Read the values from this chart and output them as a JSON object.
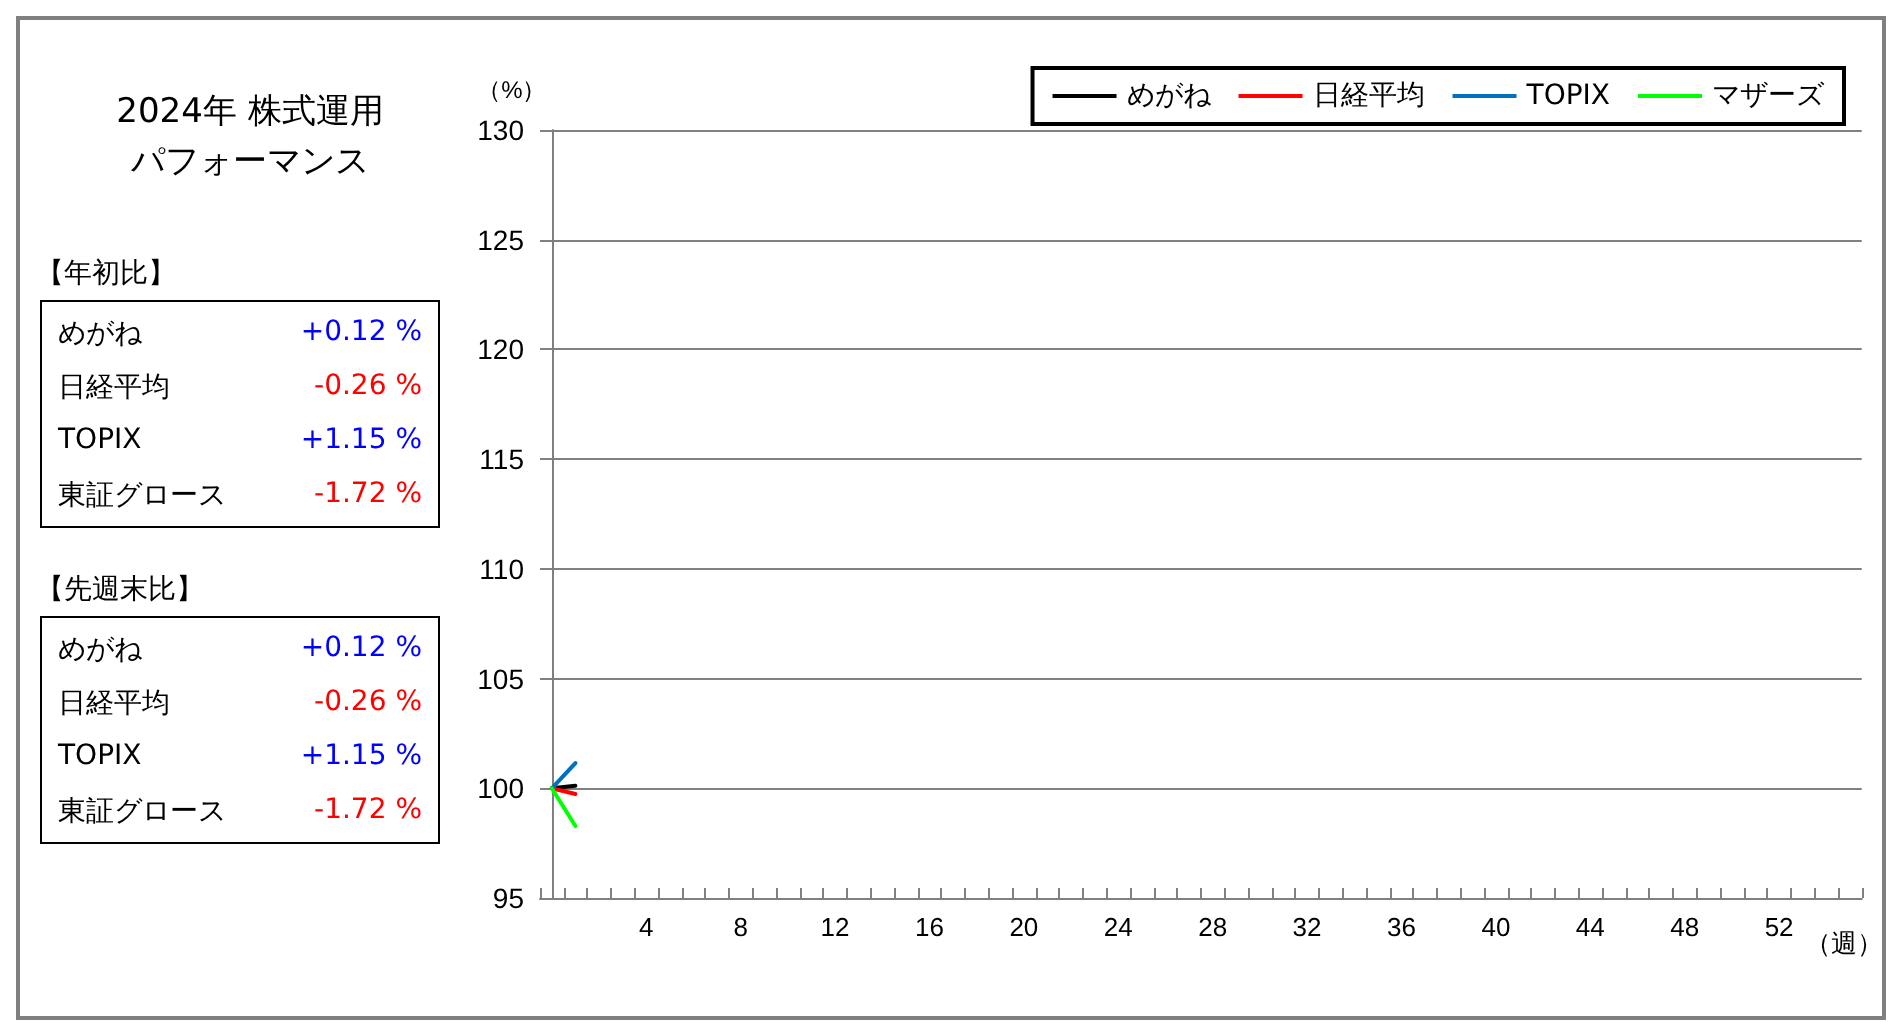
{
  "chart_data": {
    "type": "line",
    "title": "2024年  株式運用",
    "subtitle": "パフォーマンス",
    "xlabel": "（週）",
    "ylabel": "（%）",
    "x": [
      0,
      1
    ],
    "xlim": [
      -0.5,
      55.5
    ],
    "xticks": [
      {
        "value": -0.5,
        "label": null
      },
      {
        "value": 0.5,
        "label": null
      },
      {
        "value": 1.5,
        "label": null
      },
      {
        "value": 2.5,
        "label": null
      },
      {
        "value": 3.5,
        "label": null
      },
      {
        "value": 4.5,
        "label": null
      },
      {
        "value": 5.5,
        "label": null
      },
      {
        "value": 6.5,
        "label": null
      },
      {
        "value": 7.5,
        "label": null
      },
      {
        "value": 8.5,
        "label": null
      },
      {
        "value": 9.5,
        "label": null
      },
      {
        "value": 10.5,
        "label": null
      },
      {
        "value": 11.5,
        "label": null
      },
      {
        "value": 12.5,
        "label": null
      },
      {
        "value": 13.5,
        "label": null
      },
      {
        "value": 14.5,
        "label": null
      },
      {
        "value": 15.5,
        "label": null
      },
      {
        "value": 16.5,
        "label": null
      },
      {
        "value": 17.5,
        "label": null
      },
      {
        "value": 18.5,
        "label": null
      },
      {
        "value": 19.5,
        "label": null
      },
      {
        "value": 20.5,
        "label": null
      },
      {
        "value": 21.5,
        "label": null
      },
      {
        "value": 22.5,
        "label": null
      },
      {
        "value": 23.5,
        "label": null
      },
      {
        "value": 24.5,
        "label": null
      },
      {
        "value": 25.5,
        "label": null
      },
      {
        "value": 26.5,
        "label": null
      },
      {
        "value": 27.5,
        "label": null
      },
      {
        "value": 28.5,
        "label": null
      },
      {
        "value": 29.5,
        "label": null
      },
      {
        "value": 30.5,
        "label": null
      },
      {
        "value": 31.5,
        "label": null
      },
      {
        "value": 32.5,
        "label": null
      },
      {
        "value": 33.5,
        "label": null
      },
      {
        "value": 34.5,
        "label": null
      },
      {
        "value": 35.5,
        "label": null
      },
      {
        "value": 36.5,
        "label": null
      },
      {
        "value": 37.5,
        "label": null
      },
      {
        "value": 38.5,
        "label": null
      },
      {
        "value": 39.5,
        "label": null
      },
      {
        "value": 40.5,
        "label": null
      },
      {
        "value": 41.5,
        "label": null
      },
      {
        "value": 42.5,
        "label": null
      },
      {
        "value": 43.5,
        "label": null
      },
      {
        "value": 44.5,
        "label": null
      },
      {
        "value": 45.5,
        "label": null
      },
      {
        "value": 46.5,
        "label": null
      },
      {
        "value": 47.5,
        "label": null
      },
      {
        "value": 48.5,
        "label": null
      },
      {
        "value": 49.5,
        "label": null
      },
      {
        "value": 50.5,
        "label": null
      },
      {
        "value": 51.5,
        "label": null
      },
      {
        "value": 52.5,
        "label": null
      },
      {
        "value": 53.5,
        "label": null
      },
      {
        "value": 54.5,
        "label": null
      },
      {
        "value": 55.5,
        "label": null
      },
      4,
      8,
      12,
      16,
      20,
      24,
      28,
      32,
      36,
      40,
      44,
      48,
      52
    ],
    "ylim": [
      95,
      130
    ],
    "yticks": [
      95,
      100,
      105,
      110,
      115,
      120,
      125,
      130
    ],
    "grid": "y",
    "legend": "top right",
    "marker": "none",
    "line_style": "solid",
    "series": [
      {
        "name": "めがね",
        "color": "#000000",
        "values": [
          100,
          100.12
        ]
      },
      {
        "name": "日経平均",
        "color": "#ff0000",
        "values": [
          100,
          99.74
        ]
      },
      {
        "name": "TOPIX",
        "color": "#0070c0",
        "values": [
          100,
          101.15
        ]
      },
      {
        "name": "マザーズ",
        "color": "#00ff00",
        "values": [
          100,
          98.28
        ]
      }
    ],
    "annotations": [
      "【年初比】",
      "めがね",
      "+0.12 %",
      "日経平均",
      "-0.26 %",
      "TOPIX",
      "+1.15 %",
      "東証グロース",
      "-1.72 %",
      "【先週末比】",
      "めがね",
      "+0.12 %",
      "日経平均",
      "-0.26 %",
      "TOPIX",
      "+1.15 %",
      "東証グロース",
      "-1.72 %"
    ]
  }
}
